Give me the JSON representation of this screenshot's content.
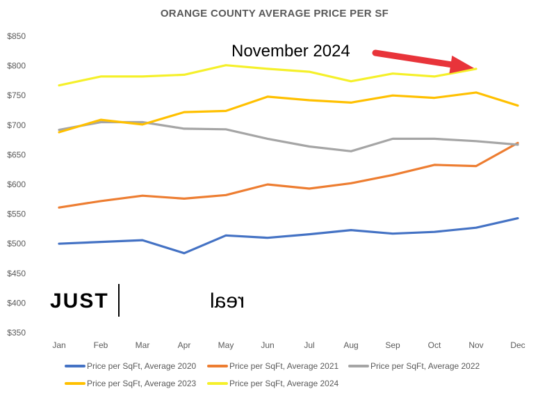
{
  "chart_data": {
    "type": "line",
    "title": "ORANGE COUNTY AVERAGE PRICE PER SF",
    "xlabel": "",
    "ylabel": "",
    "categories": [
      "Jan",
      "Feb",
      "Mar",
      "Apr",
      "May",
      "Jun",
      "Jul",
      "Aug",
      "Sep",
      "Oct",
      "Nov",
      "Dec"
    ],
    "ylim": [
      350,
      850
    ],
    "yticks": [
      350,
      400,
      450,
      500,
      550,
      600,
      650,
      700,
      750,
      800,
      850
    ],
    "ytick_labels": [
      "$350",
      "$400",
      "$450",
      "$500",
      "$550",
      "$600",
      "$650",
      "$700",
      "$750",
      "$800",
      "$850"
    ],
    "grid": false,
    "legend_position": "bottom",
    "series": [
      {
        "name": "Price per SqFt, Average 2020",
        "color": "#4472C4",
        "values": [
          500,
          503,
          506,
          484,
          514,
          510,
          516,
          523,
          517,
          520,
          527,
          543
        ]
      },
      {
        "name": "Price per SqFt, Average 2021",
        "color": "#ED7D31",
        "values": [
          561,
          572,
          581,
          576,
          582,
          600,
          593,
          602,
          616,
          633,
          631,
          670
        ]
      },
      {
        "name": "Price per SqFt, Average 2022",
        "color": "#A5A5A5",
        "values": [
          692,
          705,
          705,
          694,
          693,
          677,
          664,
          656,
          677,
          677,
          673,
          667
        ]
      },
      {
        "name": "Price per SqFt, Average 2023",
        "color": "#FFC000",
        "values": [
          688,
          709,
          701,
          722,
          724,
          748,
          742,
          738,
          750,
          746,
          755,
          733
        ]
      },
      {
        "name": "Price per SqFt, Average 2024",
        "color": "#F5F02A",
        "values": [
          767,
          782,
          782,
          785,
          801,
          795,
          790,
          774,
          787,
          782,
          795,
          null
        ]
      }
    ],
    "annotation": {
      "text": "November 2024",
      "target_category": "Nov",
      "target_value": 795,
      "arrow_color": "#E8343A"
    },
    "logo": {
      "text_left": "JUST",
      "text_right": "real"
    }
  }
}
